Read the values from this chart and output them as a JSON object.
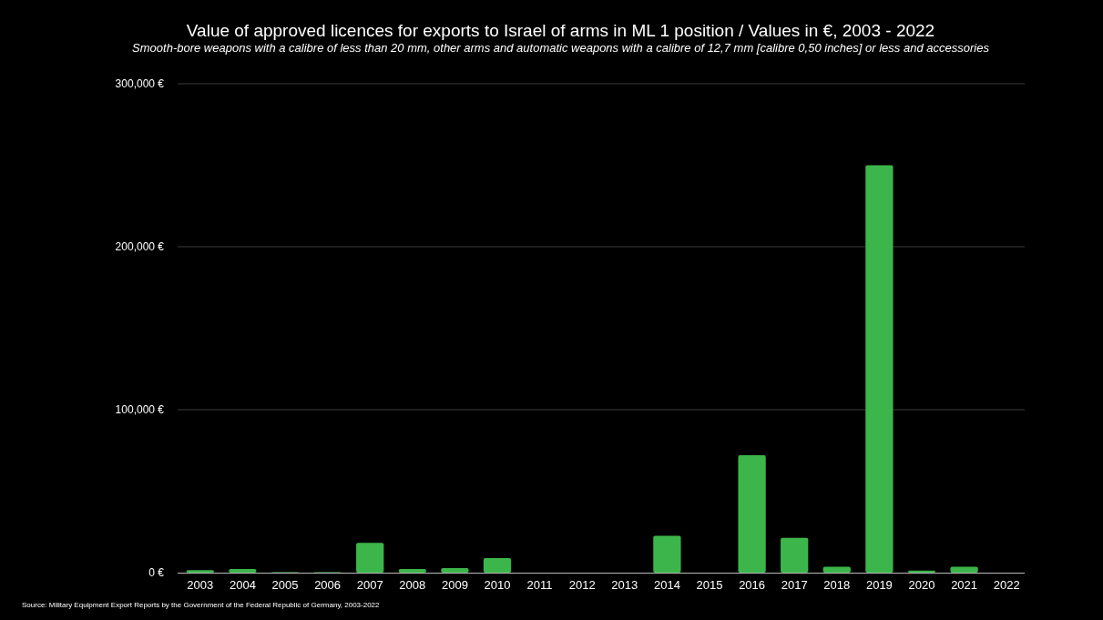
{
  "chart_data": {
    "type": "bar",
    "title": "Value of approved licences for exports to Israel of arms in ML 1 position / Values in €, 2003 - 2022",
    "subtitle": "Smooth-bore weapons with a calibre of less than 20 mm, other arms and automatic weapons with a calibre of 12,7 mm [calibre 0,50 inches] or less and accessories",
    "categories": [
      "2003",
      "2004",
      "2005",
      "2006",
      "2007",
      "2008",
      "2009",
      "2010",
      "2011",
      "2012",
      "2013",
      "2014",
      "2015",
      "2016",
      "2017",
      "2018",
      "2019",
      "2020",
      "2021",
      "2022"
    ],
    "values": [
      1500,
      2200,
      300,
      300,
      18300,
      2200,
      2800,
      9000,
      0,
      0,
      0,
      22600,
      0,
      72000,
      21300,
      3700,
      250000,
      1300,
      3700,
      0
    ],
    "color": "#3cb54a",
    "ylim": [
      0,
      300000
    ],
    "yticks": [
      {
        "value": 0,
        "label": "0 €"
      },
      {
        "value": 100000,
        "label": "100,000 €"
      },
      {
        "value": 200000,
        "label": "200,000 €"
      },
      {
        "value": 300000,
        "label": "300,000 €"
      }
    ],
    "grid": "y",
    "annotations": [
      "Source: Military Equipment Export Reports by the Government of the Federal Republic of Germany, 2003-2022"
    ]
  }
}
